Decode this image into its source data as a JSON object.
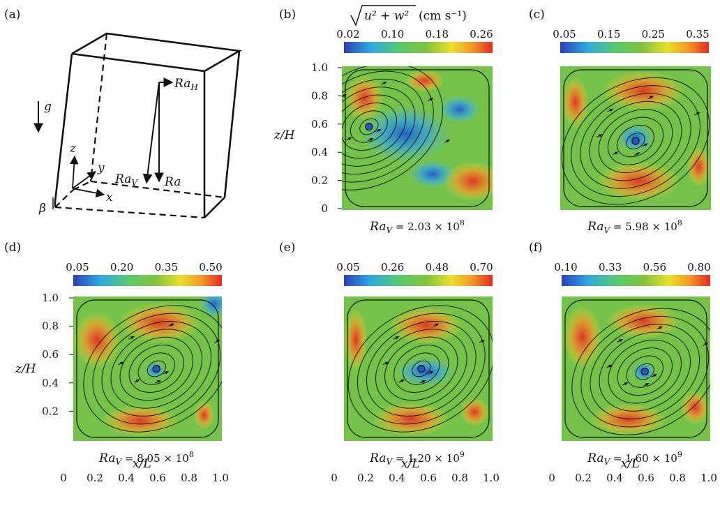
{
  "panel_labels": [
    "(a)",
    "(b)",
    "(c)",
    "(d)",
    "(e)",
    "(f)"
  ],
  "schematic": {
    "gravity": "g",
    "ra_h": "Ra",
    "ra_h_sub": "H",
    "ra_v": "Ra",
    "ra_v_sub": "V",
    "ra": "Ra",
    "axis_x": "x",
    "axis_y": "y",
    "axis_z": "z",
    "tilt": "β"
  },
  "colorbar_title": {
    "sqrt_body": "u² + w²",
    "units": "(cm s⁻¹)"
  },
  "axes": {
    "ylabel": "z/H",
    "xlabel": "x/L",
    "x_ticks": [
      "0",
      "0.2",
      "0.4",
      "0.6",
      "0.8",
      "1.0"
    ],
    "y_ticks_b": [
      "1.0",
      "0.8",
      "0.6",
      "0.4",
      "0.2",
      "0"
    ],
    "y_ticks_d": [
      "1.0",
      "0.8",
      "0.6",
      "0.4",
      "0.2"
    ]
  },
  "panels": [
    {
      "id": "b",
      "colorbar_ticks": [
        "0.02",
        "0.10",
        "0.18",
        "0.26"
      ],
      "rav_mant": "2.03",
      "rav_exp": "8",
      "vortex": [
        0.18,
        0.42
      ]
    },
    {
      "id": "c",
      "colorbar_ticks": [
        "0.05",
        "0.15",
        "0.25",
        "0.35"
      ],
      "rav_mant": "5.98",
      "rav_exp": "8",
      "vortex": [
        0.5,
        0.52
      ]
    },
    {
      "id": "d",
      "colorbar_ticks": [
        "0.05",
        "0.20",
        "0.35",
        "0.50"
      ],
      "rav_mant": "8.05",
      "rav_exp": "8",
      "vortex": [
        0.56,
        0.5
      ]
    },
    {
      "id": "e",
      "colorbar_ticks": [
        "0.05",
        "0.26",
        "0.48",
        "0.70"
      ],
      "rav_mant": "1.20",
      "rav_exp": "9",
      "vortex": [
        0.52,
        0.5
      ]
    },
    {
      "id": "f",
      "colorbar_ticks": [
        "0.10",
        "0.33",
        "0.56",
        "0.80"
      ],
      "rav_mant": "1.60",
      "rav_exp": "9",
      "vortex": [
        0.56,
        0.52
      ]
    }
  ],
  "ra_prefix": "Ra",
  "ra_sub": "V",
  "times_ten": " = {m} × 10"
}
